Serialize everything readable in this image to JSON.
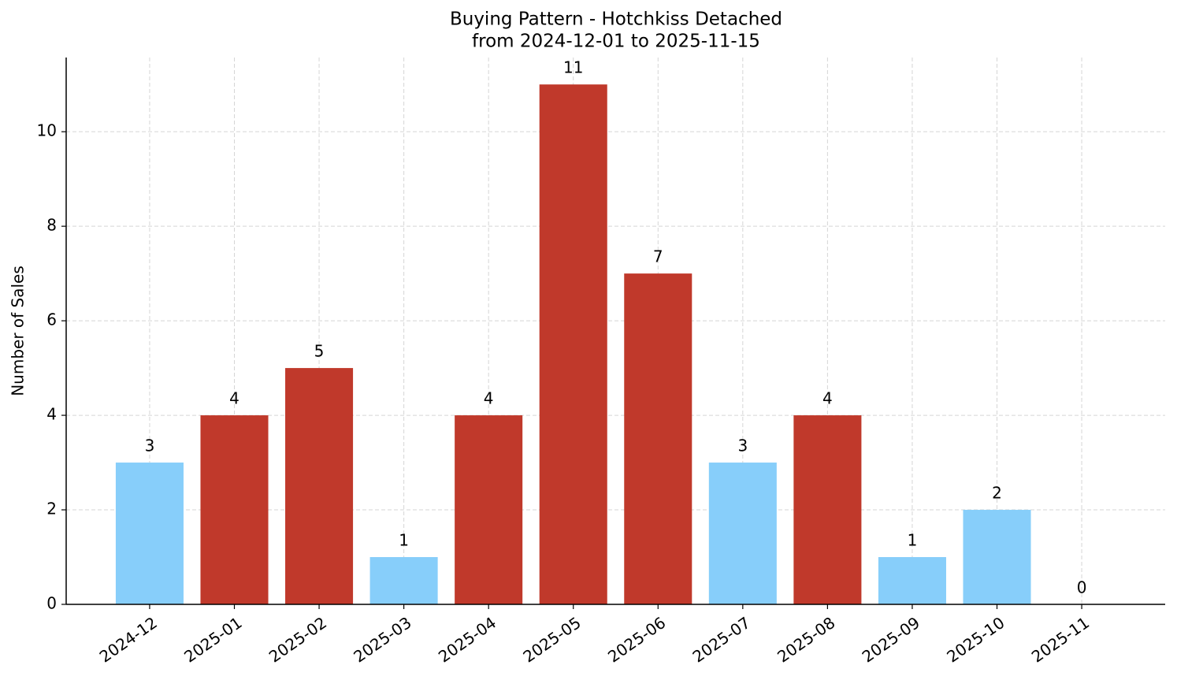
{
  "chart_data": {
    "type": "bar",
    "title": "Buying Pattern - Hotchkiss Detached",
    "subtitle": "from 2024-12-01 to 2025-11-15",
    "y_label": "Number of Sales",
    "categories": [
      "2024-12",
      "2025-01",
      "2025-02",
      "2025-03",
      "2025-04",
      "2025-05",
      "2025-06",
      "2025-07",
      "2025-08",
      "2025-09",
      "2025-10",
      "2025-11"
    ],
    "values": [
      3,
      4,
      5,
      1,
      4,
      11,
      7,
      3,
      4,
      1,
      2,
      0
    ],
    "colors": [
      "#87cefa",
      "#c0392b",
      "#c0392b",
      "#87cefa",
      "#c0392b",
      "#c0392b",
      "#c0392b",
      "#87cefa",
      "#c0392b",
      "#87cefa",
      "#87cefa",
      "#87cefa"
    ],
    "ylim": [
      0,
      11.57
    ],
    "yticks": [
      0,
      2,
      4,
      6,
      8,
      10
    ],
    "grid": true
  }
}
